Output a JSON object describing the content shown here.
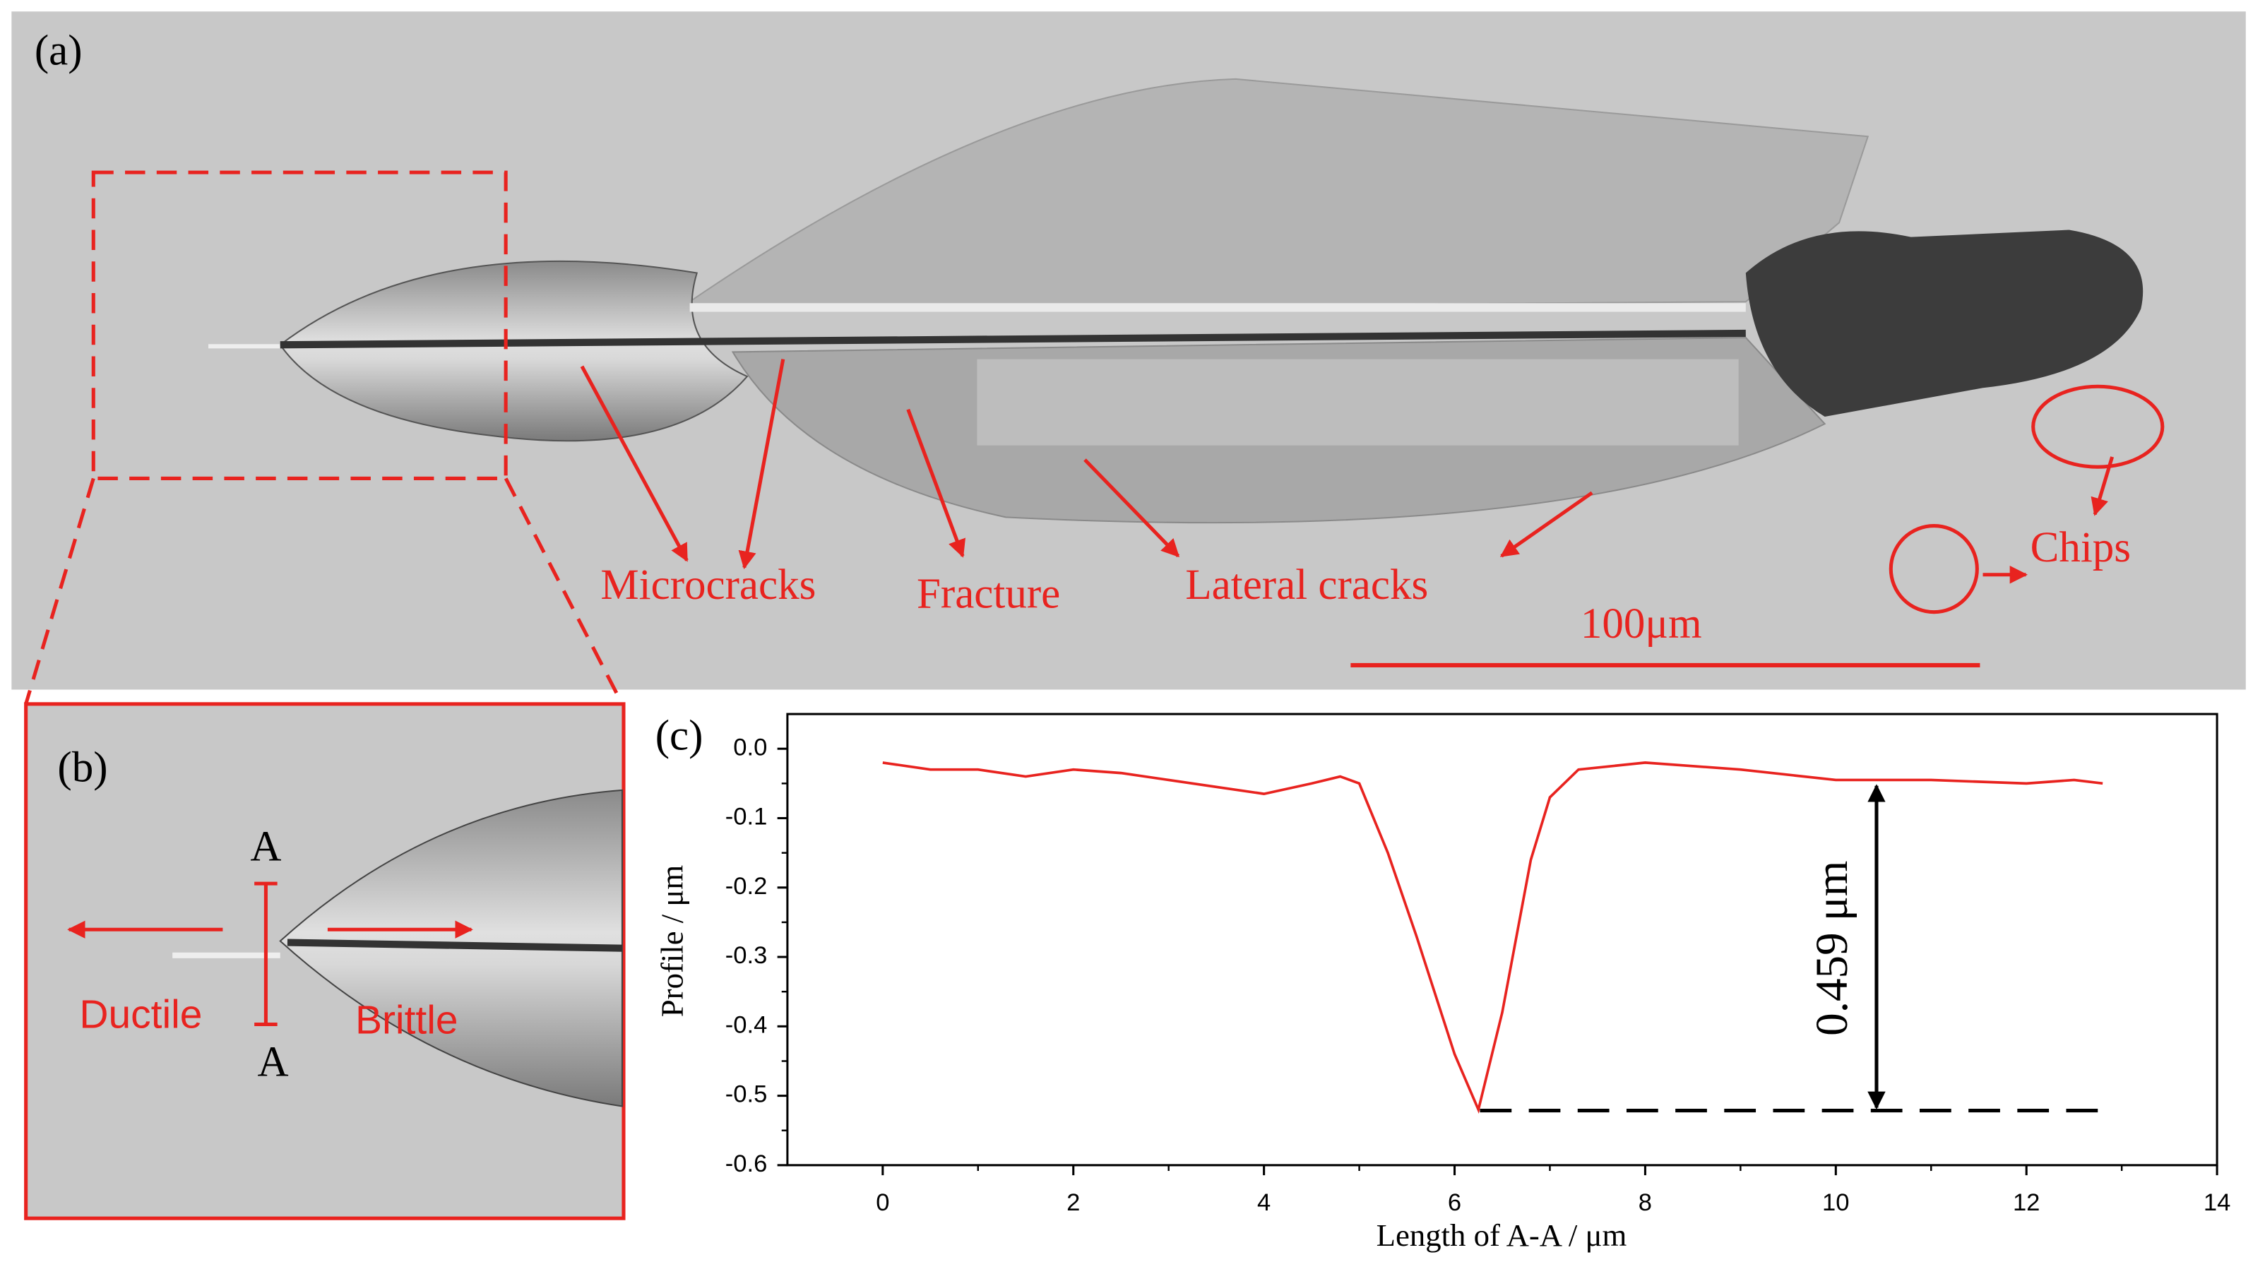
{
  "panel_a": {
    "label": "(a)",
    "annotations": [
      "Microcracks",
      "Fracture",
      "Lateral cracks",
      "Chips"
    ],
    "scale_bar": "100μm"
  },
  "panel_b": {
    "label": "(b)",
    "section_marks": [
      "A",
      "A"
    ],
    "annotations": [
      "Ductile",
      "Brittle"
    ]
  },
  "chart_data": {
    "type": "line",
    "panel_label": "(c)",
    "xlabel": "Length of A-A / μm",
    "ylabel": "Profile / μm",
    "annotation": "0.459 μm",
    "x": [
      0,
      0.5,
      1,
      1.5,
      2,
      2.5,
      3,
      3.5,
      4,
      4.5,
      4.8,
      5.0,
      5.3,
      5.6,
      6.0,
      6.25,
      6.5,
      6.8,
      7.0,
      7.3,
      8,
      9,
      10,
      11,
      12,
      12.5,
      12.8
    ],
    "series": [
      {
        "color": "#e8231f",
        "values": [
          -0.02,
          -0.03,
          -0.03,
          -0.04,
          -0.03,
          -0.035,
          -0.045,
          -0.055,
          -0.065,
          -0.05,
          -0.04,
          -0.05,
          -0.15,
          -0.27,
          -0.44,
          -0.52,
          -0.38,
          -0.16,
          -0.07,
          -0.03,
          -0.02,
          -0.03,
          -0.045,
          -0.045,
          -0.05,
          -0.045,
          -0.05
        ]
      }
    ],
    "xlim": [
      -1,
      14
    ],
    "xticks": [
      0,
      2,
      4,
      6,
      8,
      10,
      12,
      14
    ],
    "ylim": [
      -0.6,
      0.05
    ],
    "yticks": [
      {
        "value": 0,
        "label": "0.0"
      },
      -0.1,
      -0.2,
      -0.3,
      -0.4,
      -0.5,
      -0.6
    ]
  }
}
